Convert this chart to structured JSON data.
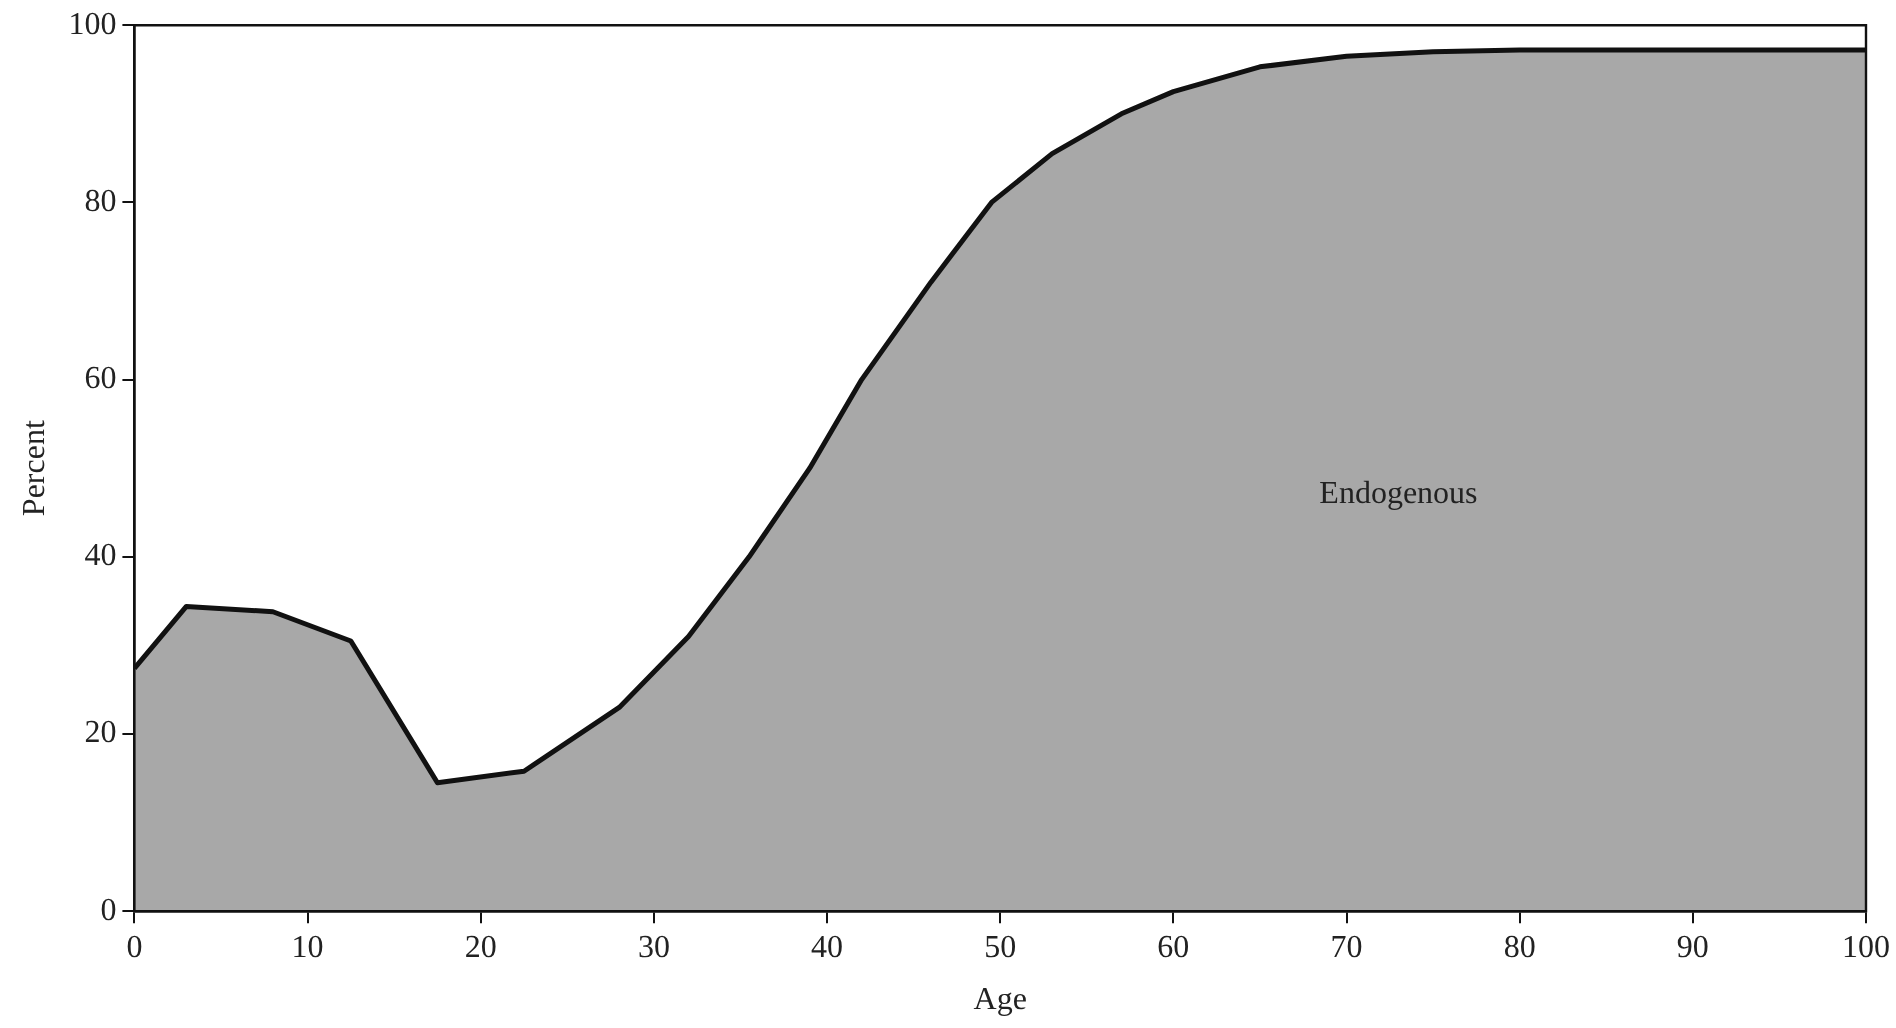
{
  "chart_data": {
    "type": "area",
    "xlabel": "Age",
    "ylabel": "Percent",
    "x": [
      0,
      3,
      8,
      12.5,
      17.5,
      22.5,
      28,
      32,
      35.5,
      39,
      42,
      46,
      49.5,
      53,
      57,
      60,
      65,
      70,
      75,
      80,
      90,
      100
    ],
    "series": [
      {
        "color": "#a8a8a8",
        "values": [
          27.4,
          34.4,
          33.8,
          30.5,
          14.5,
          15.8,
          23,
          31,
          40,
          50,
          60,
          71,
          80,
          85.5,
          90,
          92.5,
          95.3,
          96.5,
          97,
          97.2,
          97.2,
          97.2
        ]
      }
    ],
    "xlim": [
      0,
      100
    ],
    "xticks": [
      0,
      10,
      20,
      30,
      40,
      50,
      60,
      70,
      80,
      90,
      100
    ],
    "ylim": [
      0,
      100
    ],
    "yticks": [
      0,
      20,
      40,
      60,
      80,
      100
    ],
    "annotations": [
      "Endogenous"
    ],
    "grid": false,
    "legend": false,
    "marker": "none",
    "line_style": "solid"
  }
}
